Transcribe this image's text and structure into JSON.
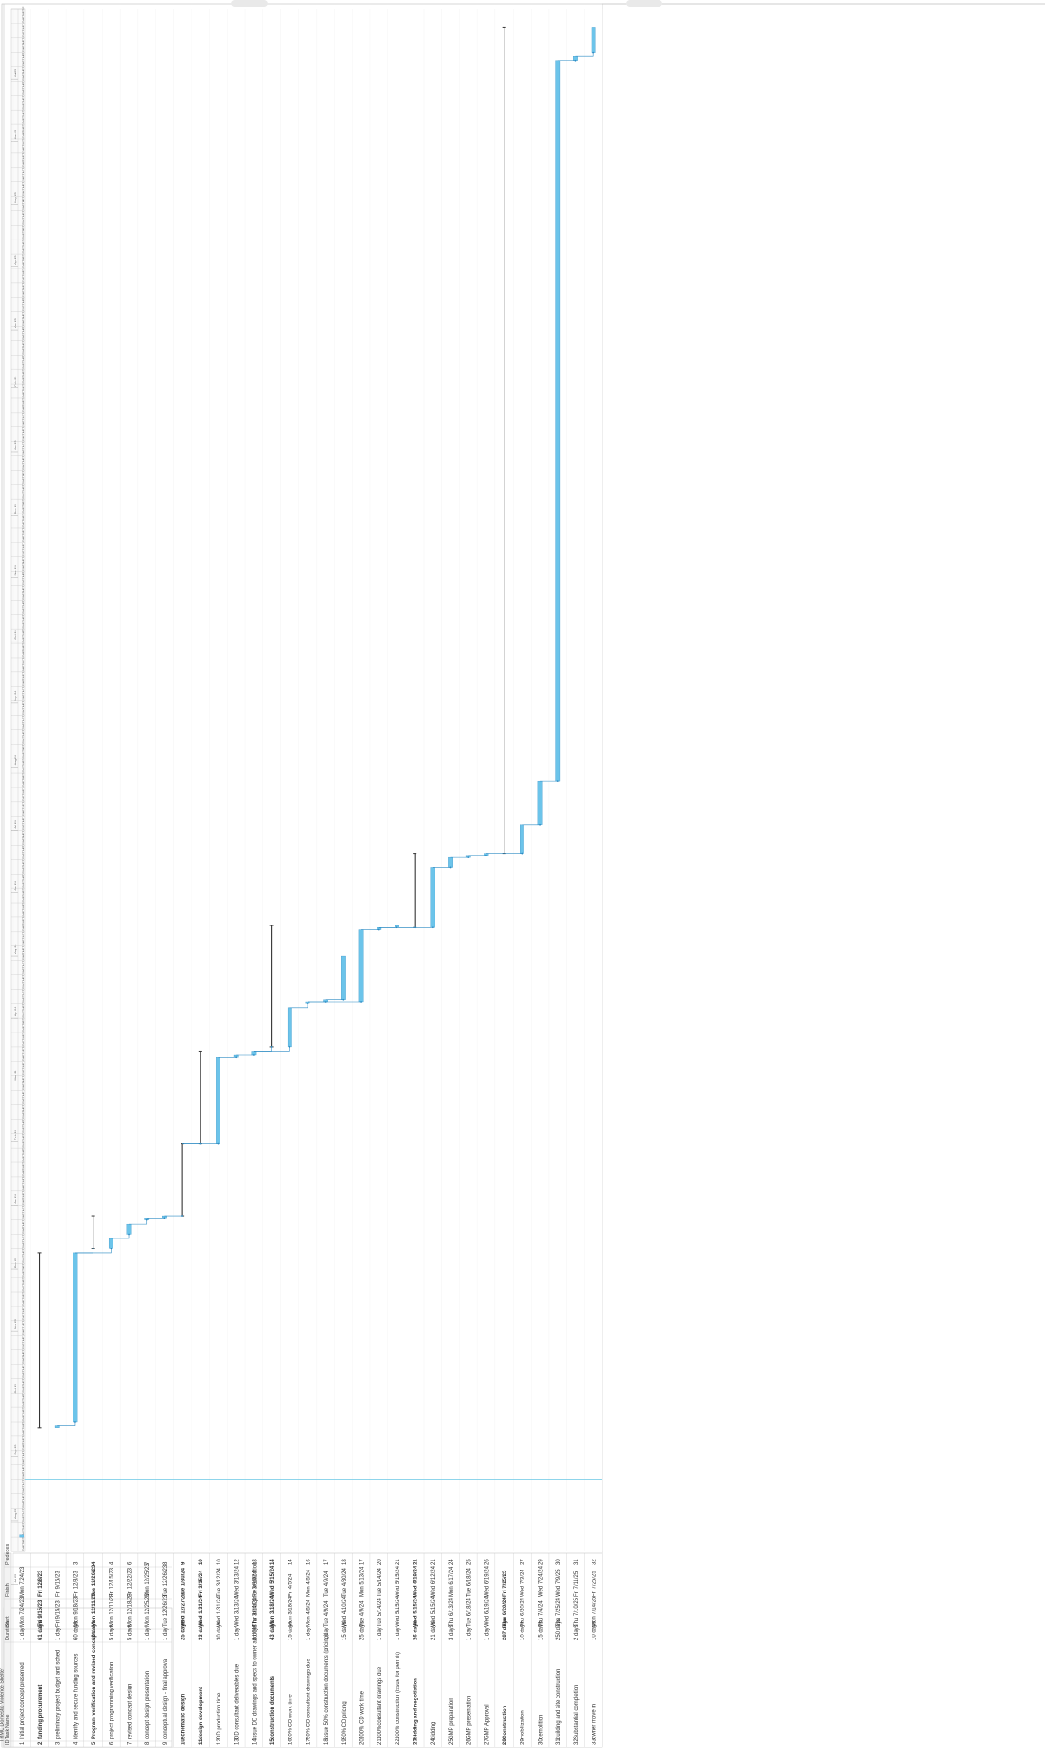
{
  "title": "TRMC Domestic Violence Shelter",
  "columns": {
    "id": "ID",
    "task_name": "Task Name",
    "duration": "Duration",
    "start": "Start",
    "finish": "Finish",
    "predecessors": "Predeces"
  },
  "timeline_header": {
    "month_labels": [
      "Jul 23",
      "Aug 23",
      "Sep 23",
      "Oct 23",
      "Nov 23",
      "Dec 23",
      "Jan 24",
      "Feb 24",
      "Mar 24",
      "Apr 24",
      "May 24",
      "Jun 24",
      "Jul 24",
      "Aug 24",
      "Sep 24",
      "Oct 24",
      "Nov 24",
      "Dec 24",
      "Jan 25",
      "Feb 25",
      "Mar 25",
      "Apr 25",
      "May 25",
      "Jun 25",
      "Jul 25"
    ],
    "day_pattern": [
      "S",
      "W",
      "S",
      "T",
      "M",
      "F",
      "T"
    ]
  },
  "colors": {
    "bar": "#6cc4ea",
    "bar_dark": "#2e8cc4",
    "summary": "#333333",
    "link": "#2e8cc4",
    "grid": "#bdbdbd",
    "today": "#7fcfe8"
  },
  "chart_data": {
    "type": "table",
    "tasks": [
      {
        "id": "1",
        "name": "Initial project concept presented",
        "duration": "1 day",
        "start": "Mon 7/24/23",
        "finish": "Mon 7/24/23",
        "pred": "",
        "summary": false,
        "s": "2023-07-24",
        "f": "2023-07-24"
      },
      {
        "id": "2",
        "name": "funding procurement",
        "duration": "61 days",
        "start": "Fri 9/15/23",
        "finish": "Fri 12/8/23",
        "pred": "",
        "summary": true,
        "s": "2023-09-15",
        "f": "2023-12-08"
      },
      {
        "id": "3",
        "name": "preliminary project budget and sched",
        "duration": "1 day",
        "start": "Fri 9/15/23",
        "finish": "Fri 9/15/23",
        "pred": "",
        "summary": false,
        "s": "2023-09-15",
        "f": "2023-09-15"
      },
      {
        "id": "4",
        "name": "identify and secure funding sources",
        "duration": "60 days",
        "start": "Mon 9/18/23",
        "finish": "Fri 12/8/23",
        "pred": "3",
        "summary": false,
        "s": "2023-09-18",
        "f": "2023-12-08"
      },
      {
        "id": "5",
        "name": "Program verification and revised concept",
        "duration": "12 days",
        "start": "Mon 12/11/23",
        "finish": "Tue 12/26/23",
        "pred": "4",
        "summary": true,
        "s": "2023-12-11",
        "f": "2023-12-26"
      },
      {
        "id": "6",
        "name": "project programming verification",
        "duration": "5 days",
        "start": "Mon 12/11/23",
        "finish": "Fri 12/15/23",
        "pred": "4",
        "summary": false,
        "s": "2023-12-11",
        "f": "2023-12-15"
      },
      {
        "id": "7",
        "name": "revised concept design",
        "duration": "5 days",
        "start": "Mon 12/18/23",
        "finish": "Fri 12/22/23",
        "pred": "6",
        "summary": false,
        "s": "2023-12-18",
        "f": "2023-12-22"
      },
      {
        "id": "8",
        "name": "concept design presentation",
        "duration": "1 day",
        "start": "Mon 12/25/23",
        "finish": "Mon 12/25/23",
        "pred": "7",
        "summary": false,
        "s": "2023-12-25",
        "f": "2023-12-25"
      },
      {
        "id": "9",
        "name": "conceptual design - final approval",
        "duration": "1 day",
        "start": "Tue 12/26/23",
        "finish": "Tue 12/26/23",
        "pred": "8",
        "summary": false,
        "s": "2023-12-26",
        "f": "2023-12-26"
      },
      {
        "id": "10",
        "name": "schematic design",
        "duration": "25 days",
        "start": "Wed 12/27/23",
        "finish": "Tue 1/30/24",
        "pred": "9",
        "summary": true,
        "s": "2023-12-27",
        "f": "2024-01-30"
      },
      {
        "id": "11",
        "name": "design development",
        "duration": "33 days",
        "start": "Wed 1/31/24",
        "finish": "Fri 3/15/24",
        "pred": "10",
        "summary": true,
        "s": "2024-01-31",
        "f": "2024-03-15"
      },
      {
        "id": "12",
        "name": "DD production time",
        "duration": "30 days",
        "start": "Wed 1/31/24",
        "finish": "Tue 3/12/24",
        "pred": "10",
        "summary": false,
        "s": "2024-01-31",
        "f": "2024-03-12"
      },
      {
        "id": "13",
        "name": "DD consultant deliverables due",
        "duration": "1 day",
        "start": "Wed 3/13/24",
        "finish": "Wed 3/13/24",
        "pred": "12",
        "summary": false,
        "s": "2024-03-13",
        "f": "2024-03-13"
      },
      {
        "id": "14",
        "name": "issue DD drawings and specs to owner and CM for initial price verification",
        "duration": "2 days",
        "start": "Thu 3/14/24",
        "finish": "Fri 3/15/24",
        "pred": "13",
        "summary": false,
        "s": "2024-03-14",
        "f": "2024-03-15"
      },
      {
        "id": "15",
        "name": "construction documents",
        "duration": "43 days",
        "start": "Mon 3/18/24",
        "finish": "Wed 5/15/24",
        "pred": "14",
        "summary": true,
        "s": "2024-03-18",
        "f": "2024-05-15"
      },
      {
        "id": "16",
        "name": "50% CD work time",
        "duration": "15 days",
        "start": "Mon 3/18/24",
        "finish": "Fri 4/5/24",
        "pred": "14",
        "summary": false,
        "s": "2024-03-18",
        "f": "2024-04-05"
      },
      {
        "id": "17",
        "name": "50% CD consultant drawings due",
        "duration": "1 day",
        "start": "Mon 4/8/24",
        "finish": "Mon 4/8/24",
        "pred": "16",
        "summary": false,
        "s": "2024-04-08",
        "f": "2024-04-08"
      },
      {
        "id": "18",
        "name": "issue 50% construction documents (pricing)",
        "duration": "1 day",
        "start": "Tue 4/9/24",
        "finish": "Tue 4/9/24",
        "pred": "17",
        "summary": false,
        "s": "2024-04-09",
        "f": "2024-04-09"
      },
      {
        "id": "19",
        "name": "50% CD pricing",
        "duration": "15 days",
        "start": "Wed 4/10/24",
        "finish": "Tue 4/30/24",
        "pred": "18",
        "summary": false,
        "s": "2024-04-10",
        "f": "2024-04-30"
      },
      {
        "id": "20",
        "name": "100% CD work time",
        "duration": "25 days",
        "start": "Tue 4/9/24",
        "finish": "Mon 5/13/24",
        "pred": "17",
        "summary": false,
        "s": "2024-04-09",
        "f": "2024-05-13"
      },
      {
        "id": "21",
        "name": "100%consultant drawings due",
        "duration": "1 day",
        "start": "Tue 5/14/24",
        "finish": "Tue 5/14/24",
        "pred": "20",
        "summary": false,
        "s": "2024-05-14",
        "f": "2024-05-14"
      },
      {
        "id": "22",
        "name": "100% construction (issue for permit)",
        "duration": "1 day",
        "start": "Wed 5/15/24",
        "finish": "Wed 5/15/24",
        "pred": "21",
        "summary": false,
        "s": "2024-05-15",
        "f": "2024-05-15"
      },
      {
        "id": "23",
        "name": "bidding and negotiation",
        "duration": "26 days",
        "start": "Wed 5/15/24",
        "finish": "Wed 6/19/24",
        "pred": "21",
        "summary": true,
        "s": "2024-05-15",
        "f": "2024-06-19"
      },
      {
        "id": "24",
        "name": "bidding",
        "duration": "21 days",
        "start": "Wed 5/15/24",
        "finish": "Wed 6/12/24",
        "pred": "21",
        "summary": false,
        "s": "2024-05-15",
        "f": "2024-06-12"
      },
      {
        "id": "25",
        "name": "GMP preparation",
        "duration": "3 days",
        "start": "Thu 6/13/24",
        "finish": "Mon 6/17/24",
        "pred": "24",
        "summary": false,
        "s": "2024-06-13",
        "f": "2024-06-17"
      },
      {
        "id": "26",
        "name": "GMP presentation",
        "duration": "1 day",
        "start": "Tue 6/18/24",
        "finish": "Tue 6/18/24",
        "pred": "25",
        "summary": false,
        "s": "2024-06-18",
        "f": "2024-06-18"
      },
      {
        "id": "27",
        "name": "GMP Approval",
        "duration": "1 day",
        "start": "Wed 6/19/24",
        "finish": "Wed 6/19/24",
        "pred": "26",
        "summary": false,
        "s": "2024-06-19",
        "f": "2024-06-19"
      },
      {
        "id": "28",
        "name": "Construction",
        "duration": "287 days",
        "start": "Thu 6/20/24",
        "finish": "Fri 7/25/25",
        "pred": "",
        "summary": true,
        "s": "2024-06-20",
        "f": "2025-07-25"
      },
      {
        "id": "29",
        "name": "mobilization",
        "duration": "10 days",
        "start": "Thu 6/20/24",
        "finish": "Wed 7/3/24",
        "pred": "27",
        "summary": false,
        "s": "2024-06-20",
        "f": "2024-07-03"
      },
      {
        "id": "30",
        "name": "demolition",
        "duration": "15 days",
        "start": "Thu 7/4/24",
        "finish": "Wed 7/24/24",
        "pred": "29",
        "summary": false,
        "s": "2024-07-04",
        "f": "2024-07-24"
      },
      {
        "id": "31",
        "name": "building and site construction",
        "duration": "250 days",
        "start": "Thu 7/25/24",
        "finish": "Wed 7/9/25",
        "pred": "30",
        "summary": false,
        "s": "2024-07-25",
        "f": "2025-07-09"
      },
      {
        "id": "32",
        "name": "Substantial completion",
        "duration": "2 days",
        "start": "Thu 7/10/25",
        "finish": "Fri 7/11/25",
        "pred": "31",
        "summary": false,
        "s": "2025-07-10",
        "f": "2025-07-11"
      },
      {
        "id": "33",
        "name": "owner move in",
        "duration": "10 days",
        "start": "Mon 7/14/25",
        "finish": "Fri 7/25/25",
        "pred": "32",
        "summary": false,
        "s": "2025-07-14",
        "f": "2025-07-25"
      }
    ],
    "today_line": "2023-08-21",
    "timeline_range": [
      "2023-07-17",
      "2025-08-04"
    ]
  }
}
